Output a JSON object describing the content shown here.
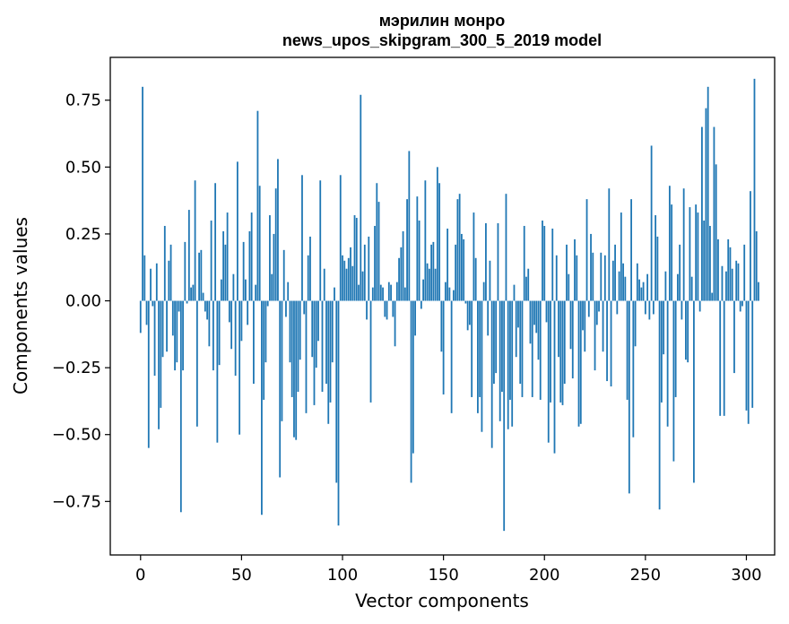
{
  "chart_data": {
    "type": "bar",
    "title": "мэрилин монро",
    "subtitle": "news_upos_skipgram_300_5_2019 model",
    "xlabel": "Vector components",
    "ylabel": "Components values",
    "xlim": [
      -15,
      314
    ],
    "ylim": [
      -0.95,
      0.91
    ],
    "x_ticks": [
      0,
      50,
      100,
      150,
      200,
      250,
      300
    ],
    "x_tick_labels": [
      "0",
      "50",
      "100",
      "150",
      "200",
      "250",
      "300"
    ],
    "y_ticks": [
      0.75,
      0.5,
      0.25,
      0.0,
      -0.25,
      -0.5,
      -0.75
    ],
    "y_tick_labels": [
      "0.75",
      "0.50",
      "0.25",
      "0.00",
      "−0.25",
      "−0.50",
      "−0.75"
    ],
    "bar_color": "#1f77b4",
    "grid": false,
    "legend": "none",
    "values": [
      -0.12,
      0.8,
      0.17,
      -0.09,
      -0.55,
      0.12,
      -0.02,
      -0.28,
      0.14,
      -0.48,
      -0.4,
      -0.21,
      0.28,
      -0.19,
      0.15,
      0.21,
      -0.13,
      -0.26,
      -0.23,
      -0.04,
      -0.79,
      -0.26,
      0.22,
      -0.01,
      0.34,
      0.05,
      0.06,
      0.45,
      -0.47,
      0.18,
      0.19,
      0.03,
      -0.04,
      -0.07,
      -0.17,
      0.3,
      -0.26,
      0.44,
      -0.53,
      -0.24,
      0.08,
      0.26,
      0.21,
      0.33,
      -0.08,
      -0.18,
      0.1,
      -0.28,
      0.52,
      -0.5,
      -0.15,
      0.22,
      0.08,
      -0.09,
      0.26,
      0.33,
      -0.31,
      0.06,
      0.71,
      0.43,
      -0.8,
      -0.37,
      -0.23,
      -0.02,
      0.32,
      0.1,
      0.25,
      0.42,
      0.53,
      -0.66,
      -0.45,
      0.19,
      -0.06,
      0.07,
      -0.23,
      -0.36,
      -0.51,
      -0.52,
      -0.34,
      -0.22,
      0.47,
      -0.05,
      -0.42,
      0.17,
      0.24,
      -0.21,
      -0.39,
      -0.25,
      -0.15,
      0.45,
      -0.34,
      0.12,
      -0.31,
      -0.46,
      -0.38,
      -0.23,
      0.05,
      -0.68,
      -0.84,
      0.47,
      0.17,
      0.15,
      0.12,
      0.16,
      0.2,
      0.13,
      0.32,
      0.31,
      0.06,
      0.77,
      0.11,
      0.21,
      -0.07,
      0.24,
      -0.38,
      0.05,
      0.28,
      0.44,
      0.37,
      0.06,
      0.05,
      -0.06,
      -0.07,
      0.07,
      0.06,
      -0.06,
      -0.17,
      0.07,
      0.16,
      0.2,
      0.26,
      0.05,
      0.38,
      0.56,
      -0.68,
      -0.57,
      -0.13,
      0.39,
      0.3,
      -0.03,
      0.08,
      0.45,
      0.14,
      0.12,
      0.21,
      0.22,
      0.12,
      0.5,
      0.44,
      -0.19,
      -0.35,
      0.07,
      0.27,
      0.05,
      -0.42,
      0.04,
      0.21,
      0.38,
      0.4,
      0.25,
      0.23,
      -0.01,
      -0.11,
      -0.09,
      -0.36,
      0.33,
      0.16,
      -0.42,
      -0.36,
      -0.49,
      0.07,
      0.29,
      -0.13,
      0.15,
      -0.55,
      -0.31,
      -0.27,
      0.29,
      -0.45,
      -0.34,
      -0.86,
      0.4,
      -0.48,
      -0.37,
      -0.47,
      0.06,
      -0.21,
      -0.1,
      -0.31,
      -0.36,
      0.28,
      0.09,
      0.12,
      -0.16,
      -0.36,
      -0.09,
      -0.12,
      -0.22,
      -0.37,
      0.3,
      0.28,
      -0.08,
      -0.53,
      -0.38,
      0.27,
      -0.57,
      0.17,
      -0.21,
      -0.38,
      -0.39,
      -0.31,
      0.21,
      0.1,
      -0.18,
      -0.29,
      0.23,
      0.17,
      -0.47,
      -0.46,
      -0.11,
      -0.19,
      0.38,
      -0.06,
      0.25,
      0.18,
      -0.26,
      -0.09,
      -0.04,
      0.18,
      -0.19,
      0.17,
      -0.3,
      0.42,
      -0.32,
      0.15,
      0.21,
      -0.05,
      0.11,
      0.33,
      0.14,
      0.09,
      -0.37,
      -0.72,
      0.38,
      -0.51,
      -0.17,
      0.14,
      0.08,
      0.05,
      0.07,
      -0.05,
      0.1,
      -0.07,
      0.58,
      -0.05,
      0.32,
      0.24,
      -0.78,
      -0.38,
      -0.2,
      0.11,
      -0.47,
      0.43,
      0.36,
      -0.6,
      -0.36,
      0.1,
      0.21,
      -0.07,
      0.42,
      -0.22,
      -0.23,
      0.35,
      0.09,
      -0.68,
      0.36,
      0.33,
      -0.04,
      0.65,
      0.3,
      0.72,
      0.8,
      0.28,
      0.03,
      0.65,
      0.51,
      0.23,
      -0.43,
      0.13,
      -0.43,
      0.11,
      0.23,
      0.2,
      0.12,
      -0.27,
      0.15,
      0.14,
      -0.04,
      -0.02,
      0.21,
      -0.41,
      -0.46,
      0.41,
      -0.4,
      0.83,
      0.26,
      0.07
    ]
  }
}
